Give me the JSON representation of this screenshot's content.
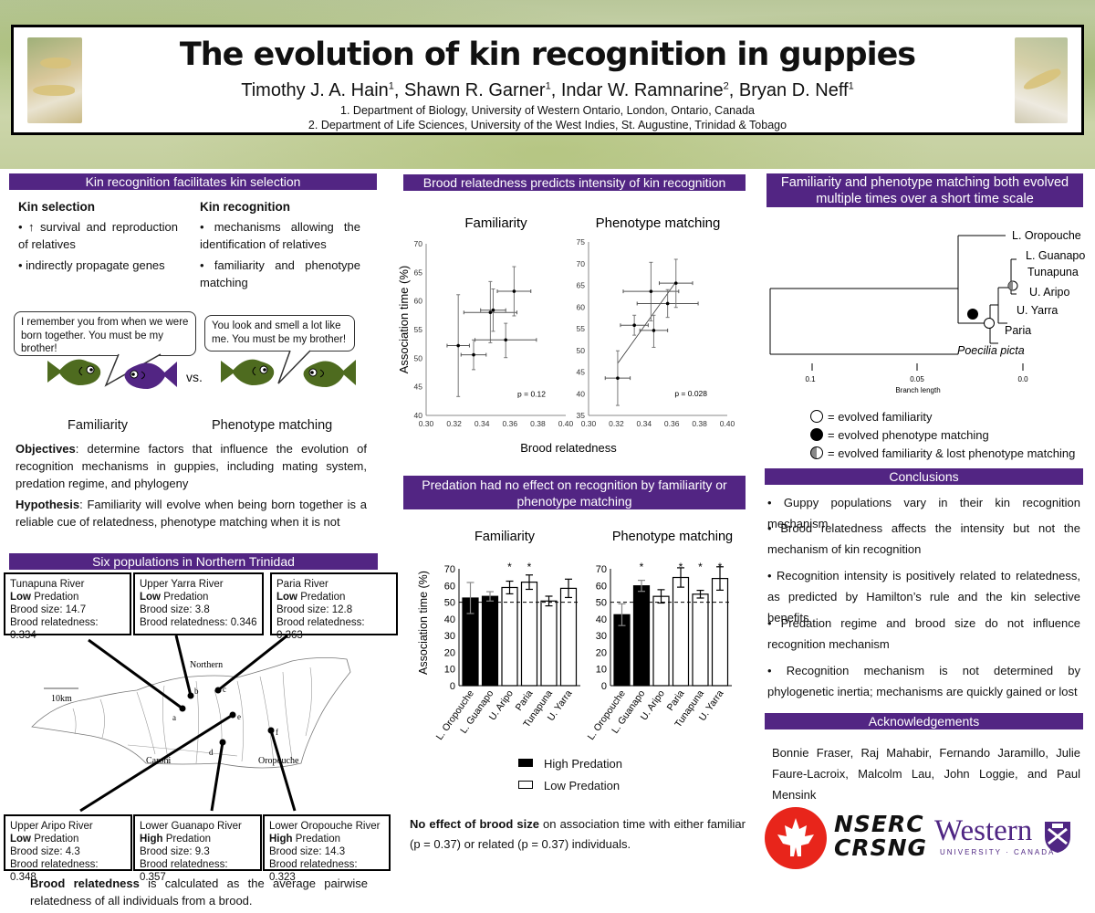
{
  "header": {
    "title": "The evolution of kin recognition in guppies",
    "authors": [
      {
        "name": "Timothy J. A. Hain",
        "aff": "1"
      },
      {
        "name": "Shawn R. Garner",
        "aff": "1"
      },
      {
        "name": "Indar W. Ramnarine",
        "aff": "2"
      },
      {
        "name": "Bryan D. Neff",
        "aff": "1"
      }
    ],
    "affiliations": [
      "1.   Department of Biology, University of Western Ontario, London, Ontario, Canada",
      "2.   Department of Life Sciences, University of the West Indies, St. Augustine, Trinidad & Tobago"
    ]
  },
  "kin_section": {
    "header": "Kin recognition facilitates kin selection",
    "kin_selection": {
      "title": "Kin selection",
      "bullets": [
        "• ↑ survival and reproduction of relatives",
        "• indirectly propagate genes"
      ]
    },
    "kin_recognition": {
      "title": "Kin recognition",
      "bullets": [
        "• mechanisms allowing the identification of relatives",
        "• familiarity and phenotype matching"
      ]
    },
    "bubble_familiarity": "I remember you from when we were born together. You must be my brother!",
    "bubble_phenotype": "You look and smell a lot like me. You must be my brother!",
    "vs": "vs.",
    "label_familiarity": "Familiarity",
    "label_phenotype": "Phenotype matching",
    "objectives_label": "Objectives",
    "objectives_text": ": determine factors that influence the evolution of recognition mechanisms in guppies, including mating system, predation regime, and phylogeny",
    "hypothesis_label": "Hypothesis",
    "hypothesis_text": ": Familiarity will evolve when being born together is a reliable cue of relatedness, phenotype matching when it is not",
    "colors": {
      "green_fish": "#4e6b1f",
      "purple_fish": "#522583"
    }
  },
  "populations": {
    "header": "Six populations in Northern Trinidad",
    "top": [
      {
        "name": "Tunapuna River",
        "predation_level": "Low",
        "predation_word": " Predation",
        "brood_size": "Brood size: 14.7",
        "relatedness": "Brood relatedness: 0.334"
      },
      {
        "name": "Upper Yarra River",
        "predation_level": "Low",
        "predation_word": " Predation",
        "brood_size": "Brood size: 3.8",
        "relatedness": "Brood relatedness: 0.346"
      },
      {
        "name": "Paria River",
        "predation_level": "Low",
        "predation_word": " Predation",
        "brood_size": "Brood size: 12.8",
        "relatedness": "Brood relatedness: 0.363"
      }
    ],
    "bottom": [
      {
        "name": "Upper Aripo River",
        "predation_level": "Low",
        "predation_word": " Predation",
        "brood_size": "Brood size: 4.3",
        "relatedness": "Brood relatedness: 0.348"
      },
      {
        "name": "Lower Guanapo River",
        "predation_level": "High",
        "predation_word": " Predation",
        "brood_size": "Brood size: 9.3",
        "relatedness": "Brood relatedness: 0.357"
      },
      {
        "name": "Lower Oropouche River",
        "predation_level": "High",
        "predation_word": " Predation",
        "brood_size": "Brood size: 14.3",
        "relatedness": "Brood relatedness: 0.323"
      }
    ],
    "map": {
      "scale_label": "10km",
      "region_labels": [
        "Northern",
        "Caroni",
        "Oropouche"
      ],
      "site_letters": [
        "a",
        "b",
        "c",
        "d",
        "e",
        "f"
      ]
    },
    "footnote_bold": "Brood relatedness",
    "footnote_text": " is calculated as the average pairwise relatedness of all individuals from a brood."
  },
  "relatedness_section": {
    "header": "Brood relatedness predicts intensity of kin recognition",
    "xlabel": "Brood relatedness",
    "ylabel": "Association time (%)"
  },
  "predation_section": {
    "header": "Predation had no effect on recognition by familiarity or phenotype matching",
    "legend": [
      {
        "label": "High Predation",
        "fill": "#000000"
      },
      {
        "label": "Low Predation",
        "fill": "#ffffff"
      }
    ],
    "brood_note_bold": "No effect of brood size",
    "brood_note_text": " on association time with either familiar (p = 0.37) or related (p = 0.37) individuals."
  },
  "phylogeny_section": {
    "header": "Familiarity and phenotype matching both evolved multiple times over a short time scale",
    "taxa": [
      "L. Oropouche",
      "L. Guanapo",
      "Tunapuna",
      "U. Aripo",
      "U. Yarra",
      "Paria",
      "Poecilia picta"
    ],
    "scale_ticks": [
      "0.1",
      "0.05",
      "0.0"
    ],
    "scale_label": "Branch length",
    "legend": [
      {
        "symbol": "open-circle",
        "label": "= evolved familiarity"
      },
      {
        "symbol": "filled-circle",
        "label": "= evolved phenotype matching"
      },
      {
        "symbol": "half-circle",
        "label": "= evolved familiarity & lost phenotype matching"
      }
    ]
  },
  "conclusions": {
    "header": "Conclusions",
    "bullets": [
      "• Guppy populations vary in their kin recognition mechanism",
      "• Brood relatedness affects the intensity but not the mechanism of kin recognition",
      "• Recognition intensity is positively related to relatedness, as predicted by Hamilton’s rule and the kin selective benefits",
      "• Predation regime and brood size do not influence recognition mechanism",
      "• Recognition mechanism is not determined by phylogenetic inertia; mechanisms are quickly gained or lost"
    ]
  },
  "acknowledgements": {
    "header": "Acknowledgements",
    "text": "Bonnie Fraser, Raj Mahabir, Fernando Jaramillo, Julie Faure-Lacroix, Malcolm Lau, John Loggie, and Paul Mensink",
    "logos": {
      "nserc_line1": "NSERC",
      "nserc_line2": "CRSNG",
      "western_word": "Western",
      "western_sub": "UNIVERSITY · CANADA",
      "nserc_red": "#e8251b",
      "western_purple": "#4f2683"
    }
  },
  "chart_data": [
    {
      "type": "scatter",
      "title": "Familiarity",
      "xlabel": "Brood relatedness",
      "ylabel": "Association time (%)",
      "xlim": [
        0.3,
        0.4
      ],
      "ylim": [
        40,
        70
      ],
      "xticks": [
        "0.30",
        "0.32",
        "0.34",
        "0.36",
        "0.38",
        "0.40"
      ],
      "yticks": [
        "40",
        "45",
        "50",
        "55",
        "60",
        "65",
        "70"
      ],
      "annotation": "p = 0.12",
      "points": [
        {
          "x": 0.323,
          "y": 52.2,
          "xerr": 0.008,
          "yerr_low": 43.3,
          "yerr_high": 61.1
        },
        {
          "x": 0.334,
          "y": 50.6,
          "xerr": 0.009,
          "yerr_low": 48.0,
          "yerr_high": 53.2
        },
        {
          "x": 0.346,
          "y": 58.0,
          "xerr": 0.019,
          "yerr_low": 52.7,
          "yerr_high": 63.4
        },
        {
          "x": 0.348,
          "y": 58.4,
          "xerr": 0.009,
          "yerr_low": 54.7,
          "yerr_high": 62.1
        },
        {
          "x": 0.357,
          "y": 53.2,
          "xerr": 0.022,
          "yerr_low": 50.1,
          "yerr_high": 56.1
        },
        {
          "x": 0.363,
          "y": 61.7,
          "xerr": 0.012,
          "yerr_low": 57.4,
          "yerr_high": 66.0
        }
      ],
      "grid": false
    },
    {
      "type": "scatter",
      "title": "Phenotype matching",
      "xlabel": "Brood relatedness",
      "ylabel": "Association time (%)",
      "xlim": [
        0.3,
        0.4
      ],
      "ylim": [
        35,
        75
      ],
      "xticks": [
        "0.30",
        "0.32",
        "0.34",
        "0.36",
        "0.38",
        "0.40"
      ],
      "yticks": [
        "35",
        "40",
        "45",
        "50",
        "55",
        "60",
        "65",
        "70",
        "75"
      ],
      "annotation": "p = 0.028",
      "trendline": {
        "x": [
          0.321,
          0.363
        ],
        "y": [
          47.0,
          65.8
        ]
      },
      "points": [
        {
          "x": 0.321,
          "y": 43.6,
          "xerr": 0.009,
          "yerr_low": 37.3,
          "yerr_high": 49.9
        },
        {
          "x": 0.333,
          "y": 55.8,
          "xerr": 0.01,
          "yerr_low": 53.5,
          "yerr_high": 58.1
        },
        {
          "x": 0.345,
          "y": 63.6,
          "xerr": 0.02,
          "yerr_low": 56.8,
          "yerr_high": 70.3
        },
        {
          "x": 0.347,
          "y": 54.6,
          "xerr": 0.01,
          "yerr_low": 50.7,
          "yerr_high": 58.1
        },
        {
          "x": 0.357,
          "y": 60.8,
          "xerr": 0.022,
          "yerr_low": 57.6,
          "yerr_high": 64.0
        },
        {
          "x": 0.363,
          "y": 65.5,
          "xerr": 0.012,
          "yerr_low": 59.9,
          "yerr_high": 71.0
        }
      ],
      "grid": false
    },
    {
      "type": "bar",
      "title": "Familiarity",
      "ylabel": "Association time (%)",
      "ylim": [
        0,
        70
      ],
      "yticks": [
        "0",
        "10",
        "20",
        "30",
        "40",
        "50",
        "60",
        "70"
      ],
      "categories": [
        "L. Oropouche",
        "L. Guanapo",
        "U. Aripo",
        "Paria",
        "Tunapuna",
        "U. Yarra"
      ],
      "values": [
        52.5,
        53.5,
        58.8,
        62.0,
        50.7,
        58.3
      ],
      "errors": [
        9.3,
        2.8,
        3.8,
        4.3,
        2.9,
        5.5
      ],
      "predation": [
        "High",
        "High",
        "Low",
        "Low",
        "Low",
        "Low"
      ],
      "significant": [
        false,
        false,
        true,
        true,
        false,
        false
      ],
      "reference_line": 50
    },
    {
      "type": "bar",
      "title": "Phenotype matching",
      "ylabel": "Association time (%)",
      "ylim": [
        0,
        70
      ],
      "yticks": [
        "0",
        "10",
        "20",
        "30",
        "40",
        "50",
        "60",
        "70"
      ],
      "categories": [
        "L. Oropouche",
        "L. Guanapo",
        "U. Aripo",
        "Paria",
        "Tunapuna",
        "U. Yarra"
      ],
      "values": [
        42.5,
        59.8,
        53.5,
        64.8,
        54.8,
        64.2
      ],
      "errors": [
        6.5,
        3.3,
        4.0,
        5.8,
        2.3,
        7.0
      ],
      "predation": [
        "High",
        "High",
        "Low",
        "Low",
        "Low",
        "Low"
      ],
      "significant": [
        false,
        true,
        false,
        true,
        true,
        true
      ],
      "reference_line": 50
    }
  ]
}
